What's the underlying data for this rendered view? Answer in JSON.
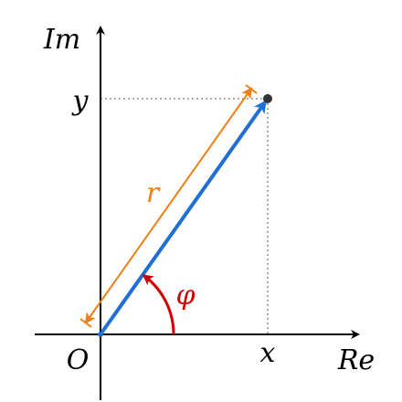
{
  "axes": {
    "imaginary": "Im",
    "real": "Re",
    "origin": "O"
  },
  "point": {
    "x_label": "x",
    "y_label": "y"
  },
  "modulus": "r",
  "argument": "φ"
}
